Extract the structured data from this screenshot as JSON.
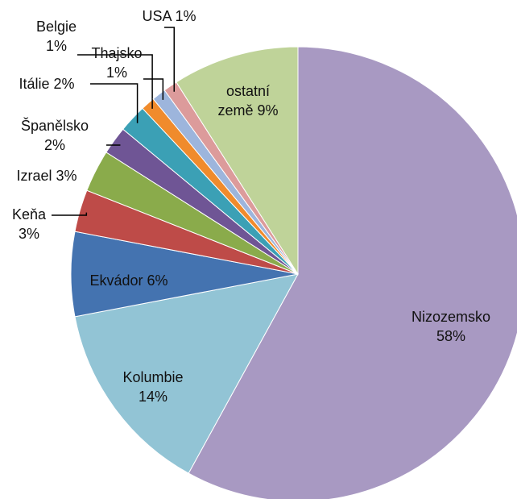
{
  "chart_data": {
    "type": "pie",
    "categories": [
      "Nizozemsko",
      "Kolumbie",
      "Ekvádor",
      "Keňa",
      "Izrael",
      "Španělsko",
      "Itálie",
      "Belgie",
      "Thajsko",
      "USA",
      "ostatní země"
    ],
    "values": [
      58,
      14,
      6,
      3,
      3,
      2,
      2,
      1,
      1,
      1,
      9
    ],
    "value_labels": [
      "58%",
      "14%",
      "6%",
      "3%",
      "3%",
      "2%",
      "2%",
      "1%",
      "1%",
      "1%",
      "9%"
    ],
    "colors": [
      "#a899c2",
      "#92c4d5",
      "#4473b0",
      "#be4b48",
      "#8aab4b",
      "#6f5595",
      "#3ba0b5",
      "#f08b2c",
      "#9db5dc",
      "#dc9b9b",
      "#bfd399"
    ]
  }
}
